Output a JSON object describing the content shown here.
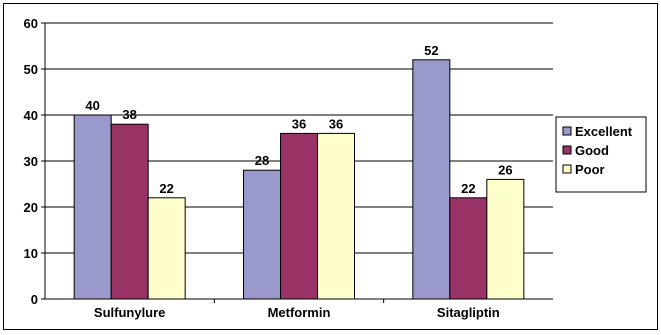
{
  "chart_data": {
    "type": "bar",
    "categories": [
      "Sulfunylure",
      "Metformin",
      "Sitagliptin"
    ],
    "series": [
      {
        "name": "Excellent",
        "values": [
          40,
          28,
          52
        ],
        "color": "#9999cc"
      },
      {
        "name": "Good",
        "values": [
          38,
          36,
          22
        ],
        "color": "#993366"
      },
      {
        "name": "Poor",
        "values": [
          22,
          36,
          26
        ],
        "color": "#ffffcc"
      }
    ],
    "title": "",
    "xlabel": "",
    "ylabel": "",
    "ylim": [
      0,
      60
    ],
    "yticks": [
      0,
      10,
      20,
      30,
      40,
      50,
      60
    ],
    "grid": true,
    "legend": "right",
    "data_labels": true
  }
}
